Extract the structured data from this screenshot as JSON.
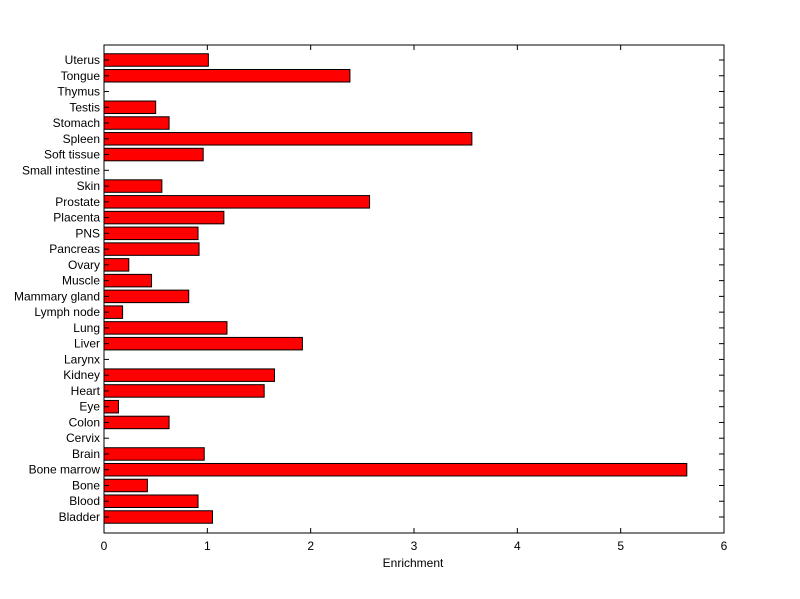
{
  "chart_data": {
    "type": "bar",
    "orientation": "horizontal",
    "title": "",
    "xlabel": "Enrichment",
    "ylabel": "",
    "xlim": [
      0,
      6
    ],
    "xticks": [
      0,
      1,
      2,
      3,
      4,
      5,
      6
    ],
    "grid": false,
    "legend": "none",
    "bar_color": "#ff0000",
    "bar_edge_color": "#000000",
    "categories": [
      "Bladder",
      "Blood",
      "Bone",
      "Bone marrow",
      "Brain",
      "Cervix",
      "Colon",
      "Eye",
      "Heart",
      "Kidney",
      "Larynx",
      "Liver",
      "Lung",
      "Lymph node",
      "Mammary gland",
      "Muscle",
      "Ovary",
      "Pancreas",
      "PNS",
      "Placenta",
      "Prostate",
      "Skin",
      "Small intestine",
      "Soft tissue",
      "Spleen",
      "Stomach",
      "Testis",
      "Thymus",
      "Tongue",
      "Uterus"
    ],
    "values": [
      1.05,
      0.91,
      0.42,
      5.64,
      0.97,
      0,
      0.63,
      0.14,
      1.55,
      1.65,
      0,
      1.92,
      1.19,
      0.18,
      0.82,
      0.46,
      0.24,
      0.92,
      0.91,
      1.16,
      2.57,
      0.56,
      0,
      0.96,
      3.56,
      0.63,
      0.5,
      0,
      2.38,
      1.01
    ]
  }
}
